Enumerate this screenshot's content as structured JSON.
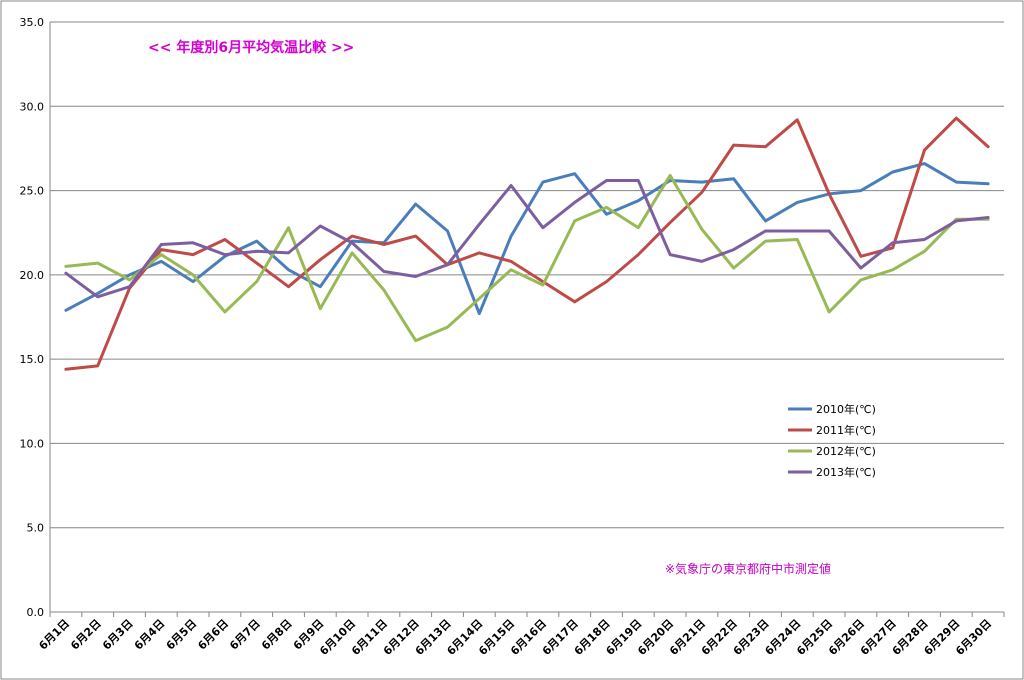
{
  "chart_data": {
    "type": "line",
    "title": "<<  年度別6月平均気温比較  >>",
    "note": "※気象庁の東京都府中市測定値",
    "ylim": [
      0,
      35
    ],
    "ytick_labels": [
      "0.0",
      "5.0",
      "10.0",
      "15.0",
      "20.0",
      "25.0",
      "30.0",
      "35.0"
    ],
    "grid": true,
    "legend_position": "right",
    "categories": [
      "6月1日",
      "6月2日",
      "6月3日",
      "6月4日",
      "6月5日",
      "6月6日",
      "6月7日",
      "6月8日",
      "6月9日",
      "6月10日",
      "6月11日",
      "6月12日",
      "6月13日",
      "6月14日",
      "6月15日",
      "6月16日",
      "6月17日",
      "6月18日",
      "6月19日",
      "6月20日",
      "6月21日",
      "6月22日",
      "6月23日",
      "6月24日",
      "6月25日",
      "6月26日",
      "6月27日",
      "6月28日",
      "6月29日",
      "6月30日"
    ],
    "series": [
      {
        "name": "2010年(℃)",
        "color": "#4a7ebb",
        "values": [
          17.9,
          18.9,
          20.0,
          20.8,
          19.6,
          21.1,
          22.0,
          20.3,
          19.3,
          22.0,
          21.9,
          24.2,
          22.6,
          17.7,
          22.3,
          25.5,
          26.0,
          23.6,
          24.4,
          25.6,
          25.5,
          25.7,
          23.2,
          24.3,
          24.8,
          25.0,
          26.1,
          26.6,
          25.5,
          25.4
        ]
      },
      {
        "name": "2011年(℃)",
        "color": "#be4b48",
        "values": [
          14.4,
          14.6,
          19.2,
          21.5,
          21.2,
          22.1,
          20.7,
          19.3,
          20.9,
          22.3,
          21.8,
          22.3,
          20.6,
          21.3,
          20.8,
          19.6,
          18.4,
          19.6,
          21.2,
          23.1,
          24.9,
          27.7,
          27.6,
          29.2,
          24.8,
          21.1,
          21.6,
          27.4,
          29.3,
          27.6
        ]
      },
      {
        "name": "2012年(℃)",
        "color": "#98b954",
        "values": [
          20.5,
          20.7,
          19.7,
          21.2,
          20.0,
          17.8,
          19.6,
          22.8,
          18.0,
          21.3,
          19.1,
          16.1,
          16.9,
          18.6,
          20.3,
          19.4,
          23.2,
          24.0,
          22.8,
          25.9,
          22.7,
          20.4,
          22.0,
          22.1,
          17.8,
          19.7,
          20.3,
          21.4,
          23.3,
          23.3
        ]
      },
      {
        "name": "2013年(℃)",
        "color": "#7d5fa0",
        "values": [
          20.1,
          18.7,
          19.3,
          21.8,
          21.9,
          21.2,
          21.4,
          21.3,
          22.9,
          21.9,
          20.2,
          19.9,
          20.6,
          23.0,
          25.3,
          22.8,
          24.3,
          25.6,
          25.6,
          21.2,
          20.8,
          21.5,
          22.6,
          22.6,
          22.6,
          20.4,
          21.9,
          22.1,
          23.2,
          23.4
        ]
      }
    ]
  }
}
